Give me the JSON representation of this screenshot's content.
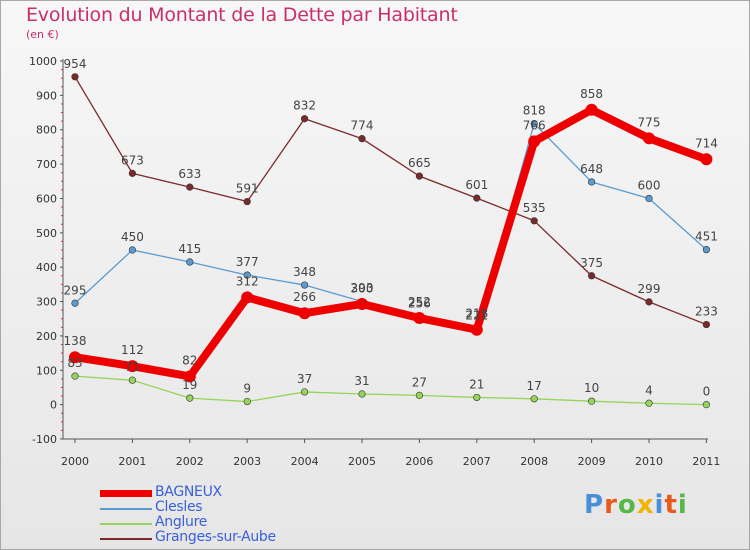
{
  "title": "Evolution du Montant de la Dette par Habitant",
  "subtitle": "(en €)",
  "logo": {
    "text": "Proxiti",
    "colors": [
      "#4a90d9",
      "#e85a1c",
      "#57b847",
      "#f0b400",
      "#4a90d9",
      "#e85a1c",
      "#57b847"
    ]
  },
  "chart_data": {
    "type": "line",
    "x": [
      "2000",
      "2001",
      "2002",
      "2003",
      "2004",
      "2005",
      "2006",
      "2007",
      "2008",
      "2009",
      "2010",
      "2011"
    ],
    "ylim": [
      -100,
      1000
    ],
    "yticks": [
      "-100",
      "0",
      "100",
      "200",
      "300",
      "400",
      "500",
      "600",
      "700",
      "800",
      "900",
      "1000"
    ],
    "legend_position": "bottom-left",
    "grid": false,
    "series": [
      {
        "name": "Granges-sur-Aube",
        "color": "#7a2a2a",
        "values": [
          954,
          673,
          633,
          591,
          832,
          774,
          665,
          601,
          535,
          375,
          299,
          233
        ],
        "labels": [
          "954",
          "673",
          "633",
          "591",
          "832",
          "774",
          "665",
          "601",
          "535",
          "375",
          "299",
          "233"
        ]
      },
      {
        "name": "Anglure",
        "color": "#96d45a",
        "values": [
          83,
          71,
          19,
          9,
          37,
          31,
          27,
          21,
          17,
          10,
          4,
          0
        ],
        "labels": [
          "83",
          "71",
          "19",
          "9",
          "37",
          "31",
          "27",
          "21",
          "17",
          "10",
          "4",
          "0"
        ]
      },
      {
        "name": "Clesles",
        "color": "#5b9bd0",
        "values": [
          295,
          450,
          415,
          377,
          348,
          300,
          256,
          221,
          818,
          648,
          600,
          451
        ],
        "labels": [
          "295",
          "450",
          "415",
          "377",
          "348",
          "300",
          "256",
          "221",
          "818",
          "648",
          "600",
          "451"
        ]
      },
      {
        "name": "BAGNEUX",
        "color": "#ee0000",
        "values": [
          138,
          112,
          82,
          312,
          266,
          293,
          252,
          218,
          766,
          858,
          775,
          714
        ],
        "labels": [
          "138",
          "112",
          "82",
          "312",
          "266",
          "293",
          "252",
          "218",
          "766",
          "858",
          "775",
          "714"
        ]
      }
    ],
    "legend": [
      "BAGNEUX",
      "Clesles",
      "Anglure",
      "Granges-sur-Aube"
    ]
  }
}
